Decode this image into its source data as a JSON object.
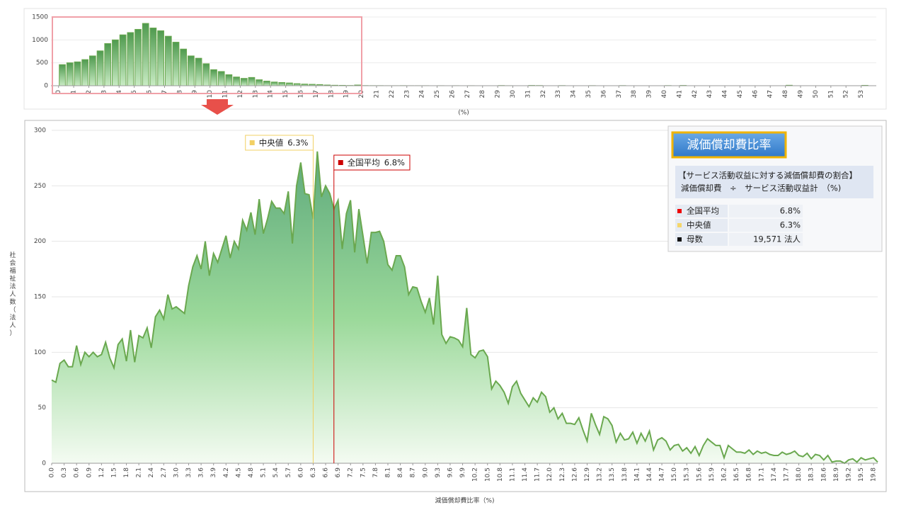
{
  "chart_data": [
    {
      "type": "histogram",
      "x_label": "(%)",
      "color": "#6aa84f",
      "bins": [
        0,
        0.5,
        1,
        1.5,
        2,
        2.5,
        3,
        3.5,
        4,
        4.5,
        5,
        5.5,
        6,
        6.5,
        7,
        7.5,
        8,
        8.5,
        9,
        9.5,
        10,
        10.5,
        11,
        11.5,
        12,
        12.5,
        13,
        13.5,
        14,
        14.5,
        15,
        15.5,
        16,
        16.5,
        17,
        17.5,
        18,
        18.5,
        19,
        19.5,
        20,
        20.5,
        21,
        21.5,
        22,
        22.5,
        23,
        23.5,
        24,
        24.5,
        25,
        25.5,
        26,
        26.5,
        27,
        27.5,
        28,
        28.5,
        29,
        29.5,
        30,
        30.5,
        31,
        31.5,
        32,
        32.5,
        33,
        33.5,
        34,
        34.5,
        35,
        35.5,
        36,
        36.5,
        37,
        37.5,
        38,
        38.5,
        39,
        39.5,
        40,
        40.5,
        41,
        41.5,
        42,
        42.5,
        43,
        43.5,
        44,
        44.5,
        45,
        45.5,
        46,
        46.5,
        47,
        47.5,
        48,
        48.5,
        49,
        49.5,
        50,
        50.5,
        51,
        51.5,
        52,
        52.5,
        53,
        53.5,
        54
      ],
      "values": [
        460,
        500,
        520,
        570,
        650,
        760,
        920,
        1000,
        1110,
        1160,
        1230,
        1360,
        1260,
        1200,
        1080,
        950,
        800,
        650,
        600,
        480,
        350,
        310,
        240,
        190,
        160,
        180,
        130,
        100,
        80,
        70,
        60,
        45,
        35,
        30,
        25,
        15,
        10,
        8,
        5,
        15,
        3,
        2,
        2,
        1,
        1,
        2,
        1,
        1,
        1,
        0,
        1,
        0,
        1,
        0,
        1,
        0,
        0,
        0,
        4,
        1,
        0,
        0,
        6,
        4,
        0,
        0,
        3,
        0,
        0,
        0,
        2,
        0,
        0,
        0,
        3,
        0,
        0,
        0,
        0,
        0,
        3,
        0,
        6,
        0,
        0,
        0,
        0,
        0,
        0,
        0,
        0,
        0,
        0,
        0,
        0,
        0,
        10,
        0,
        0,
        0,
        0,
        0,
        0,
        0,
        0,
        0,
        8,
        0
      ],
      "xlim": [
        -0.5,
        54
      ],
      "xticks": [
        0,
        1,
        2,
        3,
        4,
        5,
        6,
        7,
        8,
        9,
        10,
        11,
        12,
        13,
        14,
        15,
        16,
        17,
        18,
        19,
        20,
        21,
        22,
        23,
        24,
        25,
        26,
        27,
        28,
        29,
        30,
        31,
        32,
        33,
        34,
        35,
        36,
        37,
        38,
        39,
        40,
        41,
        42,
        43,
        44,
        45,
        46,
        47,
        48,
        49,
        50,
        51,
        52,
        53
      ],
      "ylim": [
        0,
        1500
      ],
      "yticks": [
        0,
        500,
        1000,
        1500
      ],
      "grid": true
    },
    {
      "type": "area",
      "x_label": "減価償却費比率（%)",
      "y_label": "社会福祉法人数（法人）",
      "color": "#6aa84f",
      "x": [
        0,
        0.1,
        0.2,
        0.3,
        0.4,
        0.5,
        0.6,
        0.7,
        0.8,
        0.9,
        1,
        1.1,
        1.2,
        1.3,
        1.4,
        1.5,
        1.6,
        1.7,
        1.8,
        1.9,
        2,
        2.1,
        2.2,
        2.3,
        2.4,
        2.5,
        2.6,
        2.7,
        2.8,
        2.9,
        3,
        3.1,
        3.2,
        3.3,
        3.4,
        3.5,
        3.6,
        3.7,
        3.8,
        3.9,
        4,
        4.1,
        4.2,
        4.3,
        4.4,
        4.5,
        4.6,
        4.7,
        4.8,
        4.9,
        5,
        5.1,
        5.2,
        5.3,
        5.4,
        5.5,
        5.6,
        5.7,
        5.8,
        5.9,
        6,
        6.1,
        6.2,
        6.3,
        6.4,
        6.5,
        6.6,
        6.7,
        6.8,
        6.9,
        7,
        7.1,
        7.2,
        7.3,
        7.4,
        7.5,
        7.6,
        7.7,
        7.8,
        7.9,
        8,
        8.1,
        8.2,
        8.3,
        8.4,
        8.5,
        8.6,
        8.7,
        8.8,
        8.9,
        9,
        9.1,
        9.2,
        9.3,
        9.4,
        9.5,
        9.6,
        9.7,
        9.8,
        9.9,
        10,
        10.1,
        10.2,
        10.3,
        10.4,
        10.5,
        10.6,
        10.7,
        10.8,
        10.9,
        11,
        11.1,
        11.2,
        11.3,
        11.4,
        11.5,
        11.6,
        11.7,
        11.8,
        11.9,
        12,
        12.1,
        12.2,
        12.3,
        12.4,
        12.5,
        12.6,
        12.7,
        12.8,
        12.9,
        13,
        13.1,
        13.2,
        13.3,
        13.4,
        13.5,
        13.6,
        13.7,
        13.8,
        13.9,
        14,
        14.1,
        14.2,
        14.3,
        14.4,
        14.5,
        14.6,
        14.7,
        14.8,
        14.9,
        15,
        15.1,
        15.2,
        15.3,
        15.4,
        15.5,
        15.6,
        15.7,
        15.8,
        15.9,
        16,
        16.1,
        16.2,
        16.3,
        16.4,
        16.5,
        16.6,
        16.7,
        16.8,
        16.9,
        17,
        17.1,
        17.2,
        17.3,
        17.4,
        17.5,
        17.6,
        17.7,
        17.8,
        17.9,
        18,
        18.1,
        18.2,
        18.3,
        18.4,
        18.5,
        18.6,
        18.7,
        18.8,
        18.9,
        19,
        19.1,
        19.2,
        19.3,
        19.4,
        19.5,
        19.6,
        19.7,
        19.8,
        19.9
      ],
      "values": [
        75,
        73,
        90,
        93,
        87,
        87,
        106,
        89,
        100,
        96,
        100,
        96,
        98,
        109,
        95,
        86,
        107,
        112,
        92,
        120,
        91,
        115,
        113,
        122,
        104,
        132,
        138,
        130,
        152,
        139,
        141,
        138,
        135,
        160,
        177,
        187,
        175,
        200,
        169,
        189,
        181,
        193,
        205,
        185,
        200,
        193,
        219,
        210,
        226,
        206,
        238,
        207,
        220,
        236,
        230,
        230,
        225,
        245,
        198,
        250,
        271,
        243,
        242,
        220,
        281,
        240,
        250,
        243,
        229,
        237,
        193,
        225,
        237,
        190,
        229,
        205,
        180,
        208,
        208,
        209,
        200,
        179,
        174,
        187,
        187,
        177,
        152,
        159,
        158,
        146,
        136,
        149,
        125,
        169,
        116,
        108,
        114,
        113,
        111,
        105,
        140,
        98,
        95,
        101,
        102,
        96,
        67,
        74,
        70,
        64,
        54,
        69,
        74,
        63,
        57,
        51,
        59,
        55,
        64,
        60,
        46,
        50,
        40,
        45,
        36,
        36,
        35,
        41,
        30,
        20,
        45,
        35,
        26,
        42,
        40,
        34,
        19,
        27,
        21,
        22,
        28,
        18,
        27,
        20,
        29,
        12,
        21,
        23,
        20,
        12,
        16,
        17,
        11,
        14,
        9,
        15,
        7,
        16,
        22,
        19,
        16,
        16,
        5,
        16,
        13,
        10,
        10,
        9,
        12,
        8,
        11,
        9,
        10,
        8,
        7,
        7,
        10,
        8,
        9,
        11,
        7,
        6,
        9,
        4,
        8,
        7,
        3,
        7,
        1,
        2,
        2,
        0,
        3,
        4,
        1,
        5,
        3,
        4,
        5,
        1
      ],
      "xlim": [
        0,
        19.9
      ],
      "xticks": [
        {
          "value": 0,
          "label": "0.0"
        },
        0.3,
        0.6,
        0.9,
        1.2,
        1.5,
        1.8,
        2.1,
        2.4,
        2.7,
        {
          "value": 3,
          "label": "3.0"
        },
        3.3,
        3.6,
        3.9,
        4.2,
        4.5,
        4.8,
        5.1,
        5.4,
        5.7,
        {
          "value": 6,
          "label": "6.0"
        },
        6.3,
        6.6,
        6.9,
        7.2,
        7.5,
        7.8,
        8.1,
        8.4,
        8.7,
        {
          "value": 9,
          "label": "9.0"
        },
        9.3,
        9.6,
        9.9,
        10.2,
        10.5,
        10.8,
        11.1,
        11.4,
        11.7,
        {
          "value": 12,
          "label": "12.0"
        },
        12.3,
        12.6,
        12.9,
        13.2,
        13.5,
        13.8,
        14.1,
        14.4,
        14.7,
        {
          "value": 15,
          "label": "15.0"
        },
        15.3,
        15.6,
        15.9,
        16.2,
        16.5,
        16.8,
        17.1,
        17.4,
        17.7,
        {
          "value": 18,
          "label": "18.0"
        },
        18.3,
        18.6,
        18.9,
        19.2,
        19.5,
        19.8
      ],
      "ylim": [
        0,
        300
      ],
      "yticks": [
        0,
        50,
        100,
        150,
        200,
        250,
        300
      ],
      "grid": true,
      "reference_lines": [
        {
          "name": "中央値",
          "value": 6.3,
          "label": "6.3%",
          "color": "#f2d064"
        },
        {
          "name": "全国平均",
          "value": 6.8,
          "label": "6.8%",
          "color": "#cc0000"
        }
      ]
    }
  ],
  "info_panel": {
    "title": "減価償却費比率",
    "description": [
      "【サービス活動収益に対する減価償却費の割合】",
      "減価償却費　÷　サービス活動収益計　（%)"
    ],
    "rows": [
      {
        "label": "全国平均",
        "value": "6.8%"
      },
      {
        "label": "中央値",
        "value": "6.3%"
      },
      {
        "label": "母数",
        "value": "19,571 法人"
      }
    ]
  }
}
